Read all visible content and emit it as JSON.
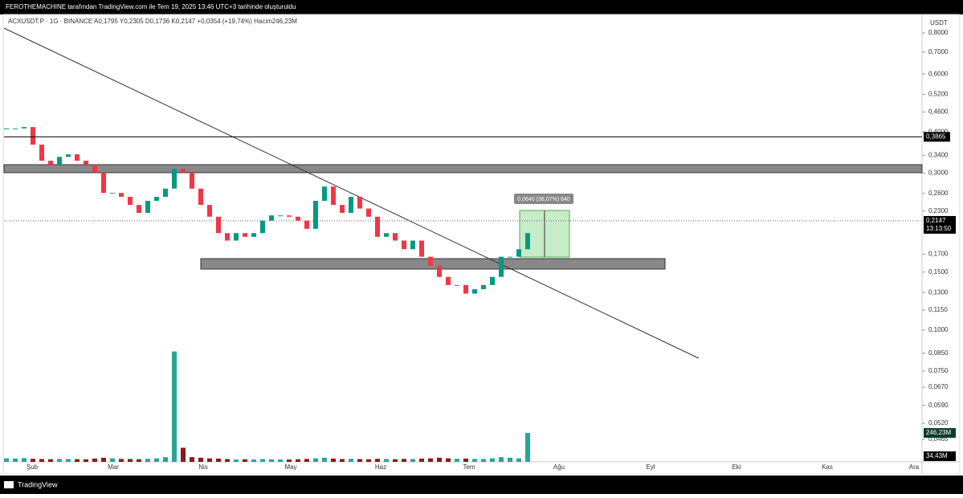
{
  "header": {
    "title": "FEROTHEMACHINE tarafından TradingView.com ile Tem 19, 2025 13:46 UTC+3 tarihinde oluşturuldu"
  },
  "footer": {
    "brand": "TradingView"
  },
  "chart_data": {
    "type": "candlestick",
    "symbol_info": "ACXUSDT.P · 1G · BINANCE  A0,1795  Y0,2305  D0,1736  K0,2147  +0,0354 (+19,74%)  Hacim246,23M",
    "currency": "USDT",
    "log_scale": true,
    "ylim": [
      0.0465,
      0.8
    ],
    "yticks": [
      {
        "value": 0.8,
        "label": "0,8000"
      },
      {
        "value": 0.7,
        "label": "0,7000"
      },
      {
        "value": 0.6,
        "label": "0,6000"
      },
      {
        "value": 0.52,
        "label": "0,5200"
      },
      {
        "value": 0.46,
        "label": "0,4600"
      },
      {
        "value": 0.4,
        "label": "0,4000"
      },
      {
        "value": 0.34,
        "label": "0,3400"
      },
      {
        "value": 0.3,
        "label": "0,3000"
      },
      {
        "value": 0.26,
        "label": "0,2600"
      },
      {
        "value": 0.23,
        "label": "0,2300"
      },
      {
        "value": 0.17,
        "label": "0,1700"
      },
      {
        "value": 0.15,
        "label": "0,1500"
      },
      {
        "value": 0.13,
        "label": "0,1300"
      },
      {
        "value": 0.115,
        "label": "0,1150"
      },
      {
        "value": 0.1,
        "label": "0,1000"
      },
      {
        "value": 0.085,
        "label": "0,0850"
      },
      {
        "value": 0.075,
        "label": "0,0750"
      },
      {
        "value": 0.067,
        "label": "0,0670"
      },
      {
        "value": 0.059,
        "label": "0,0590"
      },
      {
        "value": 0.052,
        "label": "0,0520"
      },
      {
        "value": 0.0465,
        "label": "0,0465"
      }
    ],
    "x_labels": [
      "Şub",
      "Mar",
      "Nis",
      "May",
      "Haz",
      "Tem",
      "Ağu",
      "Eyl",
      "Eki",
      "Kas",
      "Ara"
    ],
    "series": [
      {
        "name": "ACXUSDT.P",
        "up_color": "#089981",
        "down_color": "#f23645",
        "values": [
          0.41,
          0.41,
          0.414,
          0.366,
          0.327,
          0.318,
          0.336,
          0.342,
          0.327,
          0.318,
          0.301,
          0.261,
          0.261,
          0.254,
          0.24,
          0.227,
          0.247,
          0.254,
          0.269,
          0.309,
          0.301,
          0.269,
          0.24,
          0.221,
          0.197,
          0.187,
          0.197,
          0.192,
          0.197,
          0.215,
          0.223,
          0.223,
          0.221,
          0.215,
          0.203,
          0.247,
          0.273,
          0.24,
          0.227,
          0.254,
          0.234,
          0.221,
          0.192,
          0.197,
          0.187,
          0.176,
          0.187,
          0.167,
          0.157,
          0.145,
          0.137,
          0.137,
          0.129,
          0.133,
          0.137,
          0.145,
          0.167,
          0.167,
          0.176,
          0.197
        ]
      },
      {
        "name": "Hacim",
        "color": "#26a69a",
        "values": [
          30,
          28,
          32,
          26,
          24,
          22,
          25,
          24,
          23,
          22,
          28,
          35,
          30,
          25,
          24,
          22,
          26,
          30,
          40,
          940,
          120,
          40,
          35,
          30,
          28,
          24,
          20,
          22,
          20,
          24,
          22,
          20,
          20,
          22,
          25,
          30,
          35,
          28,
          24,
          26,
          24,
          22,
          26,
          24,
          22,
          25,
          24,
          28,
          30,
          35,
          30,
          26,
          28,
          25,
          24,
          30,
          40,
          35,
          30,
          246.23
        ],
        "value_labels": [
          null,
          null,
          null,
          null,
          null,
          null,
          null,
          null,
          null,
          null,
          null,
          null,
          null,
          null,
          null,
          null,
          null,
          null,
          null,
          null,
          null,
          null,
          null,
          null,
          null,
          null,
          null,
          null,
          null,
          null,
          null,
          null,
          null,
          null,
          null,
          null,
          null,
          null,
          null,
          null,
          null,
          null,
          null,
          null,
          null,
          null,
          null,
          null,
          null,
          null,
          null,
          null,
          null,
          null,
          null,
          null,
          null,
          null,
          null,
          "246,23M"
        ]
      }
    ],
    "volume_ma_label": "34,43M",
    "price_line": {
      "value": 0.3865,
      "label": "0,3865"
    },
    "last_price": {
      "value": 0.2147,
      "label": "0,2147",
      "countdown": "13:13:50"
    },
    "measure_label": "0,0640 (38,07%) 640"
  }
}
